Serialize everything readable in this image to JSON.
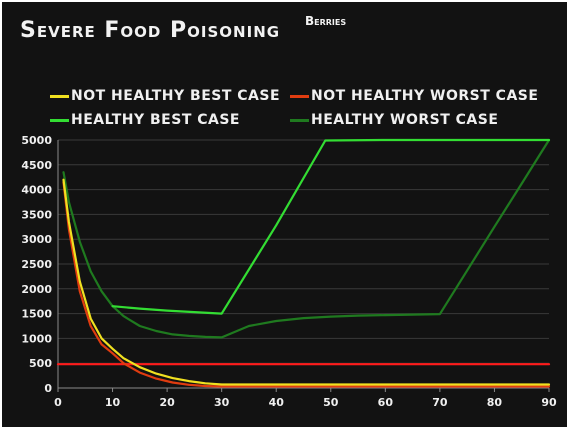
{
  "chart_data": {
    "type": "line",
    "title": "Severe Food Poisoning",
    "subtitle": "Berries",
    "xlabel": "",
    "ylabel": "",
    "xlim": [
      0,
      90
    ],
    "ylim": [
      0,
      5000
    ],
    "x_ticks": [
      "0",
      "10",
      "20",
      "30",
      "40",
      "50",
      "60",
      "70",
      "80",
      "90"
    ],
    "y_ticks": [
      "0",
      "500",
      "1000",
      "1500",
      "2000",
      "2500",
      "3000",
      "3500",
      "4000",
      "4500",
      "5000"
    ],
    "grid": true,
    "legend_position": "top",
    "series": [
      {
        "name": "Not Healthy Best Case",
        "color": "#f0e020",
        "x": [
          1,
          2,
          4,
          6,
          8,
          10,
          12,
          15,
          18,
          21,
          24,
          27,
          30,
          40,
          50,
          60,
          70,
          80,
          90
        ],
        "y": [
          4200,
          3350,
          2150,
          1400,
          1000,
          790,
          600,
          420,
          290,
          200,
          140,
          95,
          70,
          70,
          70,
          70,
          70,
          70,
          70
        ]
      },
      {
        "name": "Not Healthy Worst Case",
        "color": "#e03c10",
        "x": [
          1,
          2,
          4,
          6,
          8,
          10,
          12,
          15,
          18,
          21,
          24,
          27,
          30,
          40,
          50,
          60,
          70,
          80,
          90
        ],
        "y": [
          4150,
          3200,
          1950,
          1250,
          880,
          700,
          500,
          310,
          190,
          110,
          65,
          40,
          30,
          30,
          30,
          30,
          30,
          30,
          30
        ]
      },
      {
        "name": "Healthy Best Case",
        "color": "#33dd33",
        "x": [
          10,
          15,
          20,
          25,
          30,
          40,
          49,
          60,
          70,
          80,
          90
        ],
        "y": [
          1650,
          1600,
          1560,
          1530,
          1500,
          3280,
          4990,
          5000,
          5000,
          5000,
          5000
        ]
      },
      {
        "name": "Healthy Worst Case",
        "color": "#1f7a1f",
        "x": [
          1,
          2,
          4,
          6,
          8,
          10,
          12,
          15,
          18,
          21,
          24,
          27,
          30,
          35,
          40,
          45,
          50,
          55,
          60,
          65,
          70,
          75,
          80,
          85,
          90
        ],
        "y": [
          4350,
          3750,
          2950,
          2350,
          1950,
          1650,
          1450,
          1250,
          1150,
          1080,
          1050,
          1030,
          1020,
          1250,
          1350,
          1410,
          1440,
          1460,
          1470,
          1480,
          1490,
          2370,
          3250,
          4120,
          5000
        ]
      },
      {
        "name": "",
        "color": "#ff1a1a",
        "x": [
          0,
          90
        ],
        "y": [
          480,
          480
        ]
      }
    ]
  }
}
